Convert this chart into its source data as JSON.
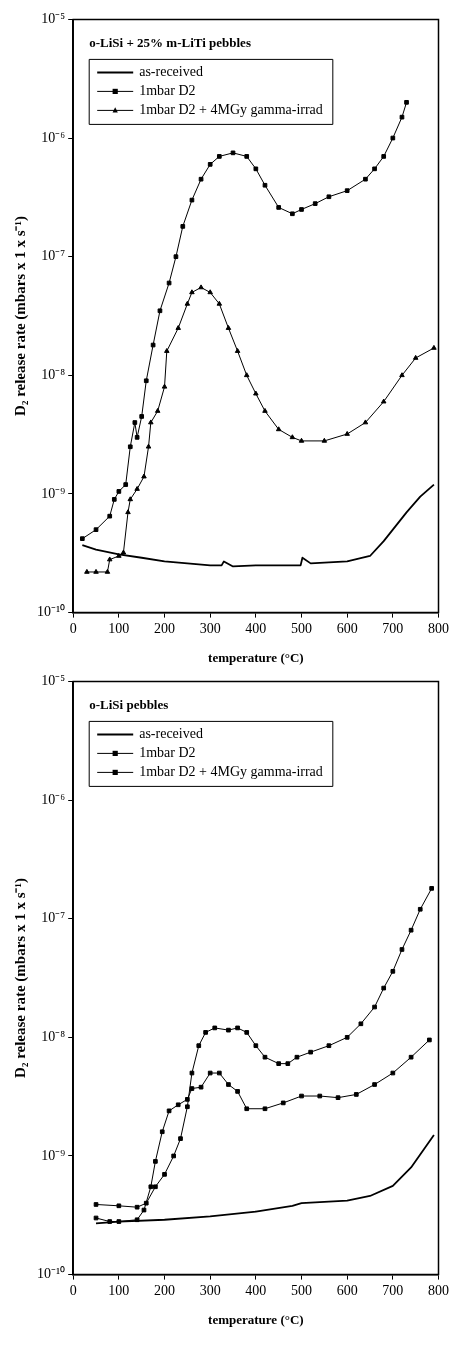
{
  "chart_data": [
    {
      "type": "line",
      "title": "o-LiSi + 25% m-LiTi pebbles",
      "xlabel": "temperature (°C)",
      "ylabel": "D₂ release rate (mbars x 1 x s⁻¹)",
      "log": "y",
      "grid": false,
      "legend": "top left",
      "xlim": [
        0,
        800
      ],
      "xticks": [
        0,
        100,
        200,
        300,
        400,
        500,
        600,
        700,
        800
      ],
      "ylim": [
        1e-10,
        1e-05
      ],
      "yticks": [
        {
          "value": 1e-10,
          "label": "10⁻¹⁰"
        },
        {
          "value": 1e-09,
          "label": "10⁻⁹"
        },
        {
          "value": 1e-08,
          "label": "10⁻⁸"
        },
        {
          "value": 1e-07,
          "label": "10⁻⁷"
        },
        {
          "value": 1e-06,
          "label": "10⁻⁶"
        },
        {
          "value": 1e-05,
          "label": "10⁻⁵"
        }
      ],
      "series": [
        {
          "name": "as-received",
          "color": "#000000",
          "marker": "none",
          "x": [
            20,
            50,
            100,
            150,
            200,
            250,
            300,
            325,
            330,
            350,
            400,
            450,
            498,
            502,
            520,
            600,
            650,
            680,
            700,
            730,
            760,
            790
          ],
          "values": [
            3.7e-10,
            3.4e-10,
            3.1e-10,
            2.9e-10,
            2.7e-10,
            2.6e-10,
            2.5e-10,
            2.5e-10,
            2.7e-10,
            2.45e-10,
            2.5e-10,
            2.5e-10,
            2.5e-10,
            2.9e-10,
            2.6e-10,
            2.7e-10,
            3e-10,
            4e-10,
            5e-10,
            7e-10,
            9.5e-10,
            1.2e-09
          ]
        },
        {
          "name": "1mbar D2",
          "color": "#000000",
          "marker": "square",
          "x": [
            20,
            50,
            80,
            90,
            100,
            115,
            125,
            135,
            140,
            150,
            160,
            175,
            190,
            210,
            225,
            240,
            260,
            280,
            300,
            320,
            350,
            380,
            400,
            420,
            450,
            480,
            500,
            530,
            560,
            600,
            640,
            660,
            680,
            700,
            720,
            730
          ],
          "values": [
            4.2e-10,
            5e-10,
            6.5e-10,
            9e-10,
            1.05e-09,
            1.2e-09,
            2.5e-09,
            4e-09,
            3e-09,
            4.5e-09,
            9e-09,
            1.8e-08,
            3.5e-08,
            6e-08,
            1e-07,
            1.8e-07,
            3e-07,
            4.5e-07,
            6e-07,
            7e-07,
            7.5e-07,
            7e-07,
            5.5e-07,
            4e-07,
            2.6e-07,
            2.3e-07,
            2.5e-07,
            2.8e-07,
            3.2e-07,
            3.6e-07,
            4.5e-07,
            5.5e-07,
            7e-07,
            1e-06,
            1.5e-06,
            2e-06
          ]
        },
        {
          "name": "1mbar D2 + 4MGy gamma-irrad",
          "color": "#000000",
          "marker": "triangle",
          "x": [
            30,
            50,
            75,
            80,
            100,
            110,
            120,
            125,
            140,
            155,
            165,
            170,
            185,
            200,
            205,
            230,
            250,
            260,
            280,
            300,
            320,
            340,
            360,
            380,
            400,
            420,
            450,
            480,
            500,
            550,
            600,
            640,
            680,
            720,
            750,
            790
          ],
          "values": [
            2.2e-10,
            2.2e-10,
            2.2e-10,
            2.8e-10,
            3e-10,
            3.2e-10,
            7e-10,
            9e-10,
            1.1e-09,
            1.4e-09,
            2.5e-09,
            4e-09,
            5e-09,
            8e-09,
            1.6e-08,
            2.5e-08,
            4e-08,
            5e-08,
            5.5e-08,
            5e-08,
            4e-08,
            2.5e-08,
            1.6e-08,
            1e-08,
            7e-09,
            5e-09,
            3.5e-09,
            3e-09,
            2.8e-09,
            2.8e-09,
            3.2e-09,
            4e-09,
            6e-09,
            1e-08,
            1.4e-08,
            1.7e-08
          ]
        }
      ]
    },
    {
      "type": "line",
      "title": "o-LiSi pebbles",
      "xlabel": "temperature (°C)",
      "ylabel": "D₂ release rate (mbars x 1 x s⁻¹)",
      "log": "y",
      "grid": false,
      "legend": "top left",
      "xlim": [
        0,
        800
      ],
      "xticks": [
        0,
        100,
        200,
        300,
        400,
        500,
        600,
        700,
        800
      ],
      "ylim": [
        1e-10,
        1e-05
      ],
      "yticks": [
        {
          "value": 1e-10,
          "label": "10⁻¹⁰"
        },
        {
          "value": 1e-09,
          "label": "10⁻⁹"
        },
        {
          "value": 1e-08,
          "label": "10⁻⁸"
        },
        {
          "value": 1e-07,
          "label": "10⁻⁷"
        },
        {
          "value": 1e-06,
          "label": "10⁻⁶"
        },
        {
          "value": 1e-05,
          "label": "10⁻⁵"
        }
      ],
      "series": [
        {
          "name": "as-received",
          "color": "#000000",
          "marker": "none",
          "x": [
            50,
            100,
            200,
            300,
            400,
            480,
            500,
            600,
            650,
            700,
            740,
            790
          ],
          "values": [
            2.7e-10,
            2.8e-10,
            2.9e-10,
            3.1e-10,
            3.4e-10,
            3.8e-10,
            4e-10,
            4.2e-10,
            4.6e-10,
            5.6e-10,
            8e-10,
            1.5e-09
          ]
        },
        {
          "name": "1mbar D2",
          "color": "#000000",
          "marker": "square",
          "x": [
            50,
            100,
            140,
            160,
            180,
            200,
            220,
            235,
            250,
            260,
            275,
            290,
            310,
            340,
            360,
            380,
            400,
            420,
            450,
            470,
            490,
            520,
            560,
            600,
            630,
            660,
            680,
            700,
            720,
            740,
            760,
            785
          ],
          "values": [
            3.9e-10,
            3.8e-10,
            3.7e-10,
            4e-10,
            5.5e-10,
            7e-10,
            1e-09,
            1.4e-09,
            2.6e-09,
            5e-09,
            8.5e-09,
            1.1e-08,
            1.2e-08,
            1.15e-08,
            1.2e-08,
            1.1e-08,
            8.5e-09,
            6.8e-09,
            6e-09,
            6e-09,
            6.8e-09,
            7.5e-09,
            8.5e-09,
            1e-08,
            1.3e-08,
            1.8e-08,
            2.6e-08,
            3.6e-08,
            5.5e-08,
            8e-08,
            1.2e-07,
            1.8e-07
          ]
        },
        {
          "name": "1mbar D2 + 4MGy gamma-irrad",
          "color": "#000000",
          "marker": "square",
          "x": [
            50,
            80,
            100,
            140,
            155,
            170,
            180,
            195,
            210,
            230,
            250,
            260,
            280,
            300,
            320,
            340,
            360,
            380,
            420,
            460,
            500,
            540,
            580,
            620,
            660,
            700,
            740,
            780
          ],
          "values": [
            3e-10,
            2.8e-10,
            2.8e-10,
            2.9e-10,
            3.5e-10,
            5.5e-10,
            9e-10,
            1.6e-09,
            2.4e-09,
            2.7e-09,
            3e-09,
            3.7e-09,
            3.8e-09,
            5e-09,
            5e-09,
            4e-09,
            3.5e-09,
            2.5e-09,
            2.5e-09,
            2.8e-09,
            3.2e-09,
            3.2e-09,
            3.1e-09,
            3.3e-09,
            4e-09,
            5e-09,
            6.8e-09,
            9.5e-09
          ]
        }
      ]
    }
  ]
}
